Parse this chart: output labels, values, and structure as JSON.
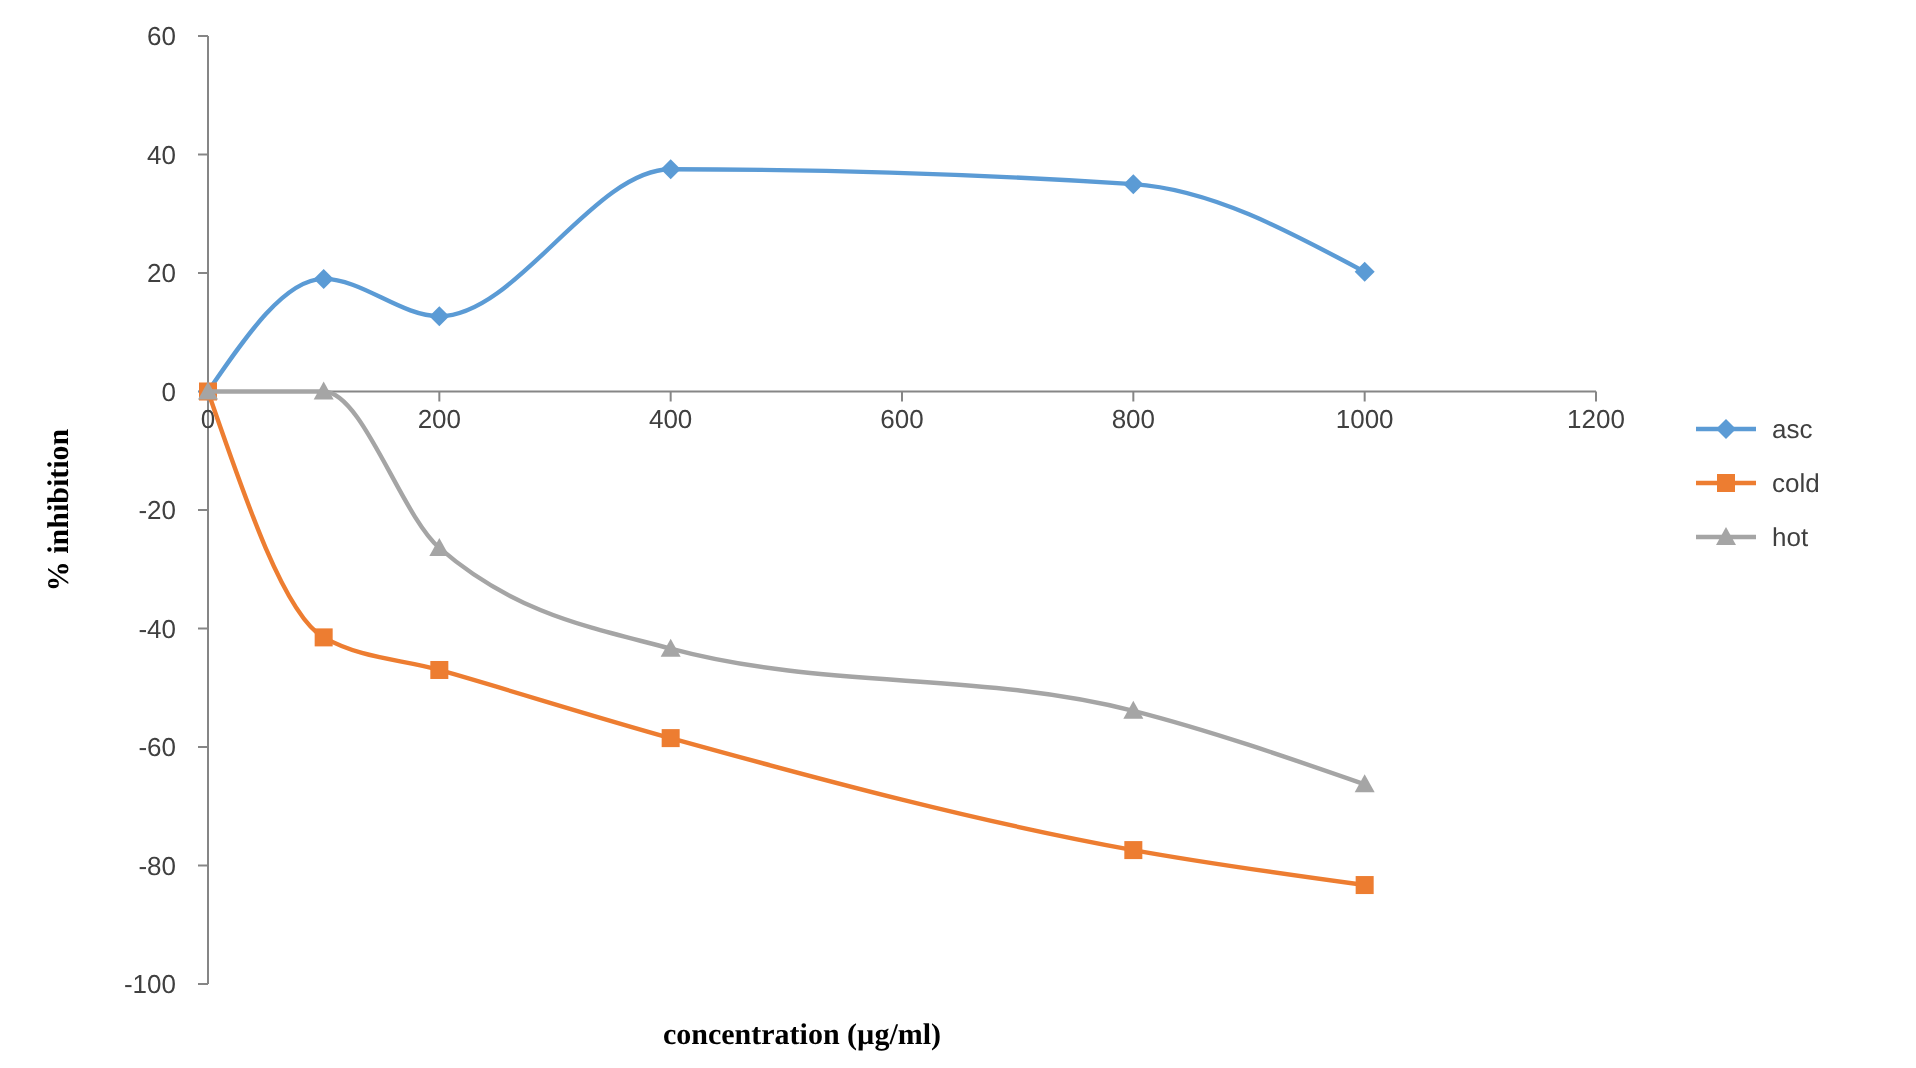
{
  "chart_data": {
    "type": "line",
    "xlabel": "concentration  (µg/ml)",
    "ylabel": "% inhibition",
    "x": [
      0,
      100,
      200,
      400,
      800,
      1000
    ],
    "series": [
      {
        "name": "asc",
        "color": "#5b9bd5",
        "marker": "diamond",
        "values": [
          0,
          19,
          12.7,
          37.5,
          35,
          20.2
        ]
      },
      {
        "name": "cold",
        "color": "#ed7d31",
        "marker": "square",
        "values": [
          0,
          -41.5,
          -47,
          -58.5,
          -77.4,
          -83.3
        ]
      },
      {
        "name": "hot",
        "color": "#a5a5a5",
        "marker": "triangle",
        "values": [
          0,
          0,
          -26.4,
          -43.4,
          -53.9,
          -66.3
        ]
      }
    ],
    "xlim": [
      0,
      1200
    ],
    "xticks": [
      0,
      200,
      400,
      600,
      800,
      1000,
      1200
    ],
    "ylim": [
      -100,
      60
    ],
    "yticks": [
      -100,
      -80,
      -60,
      -40,
      -20,
      0,
      20,
      40,
      60
    ],
    "grid": false,
    "legend": "right"
  }
}
